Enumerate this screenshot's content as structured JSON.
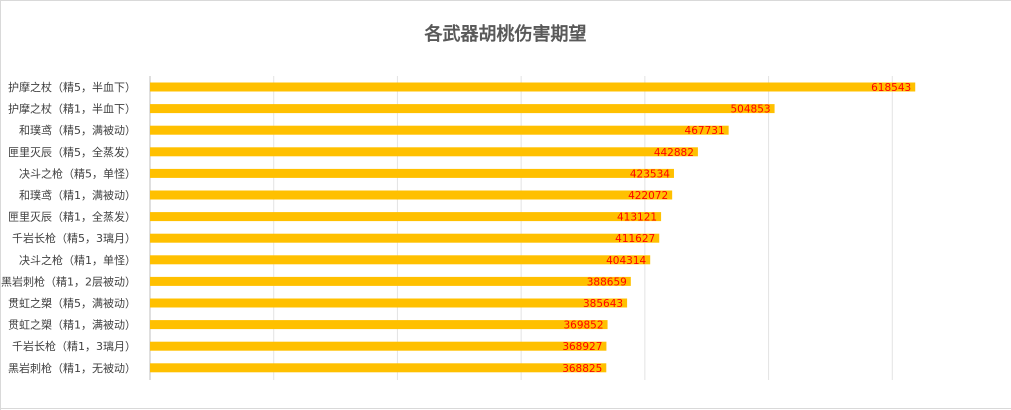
{
  "chart_data": {
    "type": "bar",
    "orientation": "horizontal",
    "title": "各武器胡桃伤害期望",
    "xlabel": "",
    "ylabel": "",
    "xlim": [
      0,
      700000
    ],
    "grid": true,
    "legend": "none",
    "bar_color": "#FFC000",
    "label_color": "#FF0000",
    "categories": [
      "护摩之杖（精5，半血下）",
      "护摩之杖（精1，半血下）",
      "和璞鸢（精5，满被动）",
      "匣里灭辰（精5，全蒸发）",
      "决斗之枪（精5，单怪）",
      "和璞鸢（精1，满被动）",
      "匣里灭辰（精1，全蒸发）",
      "千岩长枪（精5，3璃月）",
      "决斗之枪（精1，单怪）",
      "黑岩刺枪（精1，2层被动）",
      "贯虹之槊（精5，满被动）",
      "贯虹之槊（精1，满被动）",
      "千岩长枪（精1，3璃月）",
      "黑岩刺枪（精1，无被动）"
    ],
    "values": [
      618543,
      504853,
      467731,
      442882,
      423534,
      422072,
      413121,
      411627,
      404314,
      388659,
      385643,
      369852,
      368927,
      368825
    ],
    "data_labels": [
      "618543",
      "504853",
      "467731",
      "442882",
      "423534",
      "422072",
      "413121",
      "411627",
      "404314",
      "388659",
      "385643",
      "369852",
      "368927",
      "368825"
    ]
  }
}
